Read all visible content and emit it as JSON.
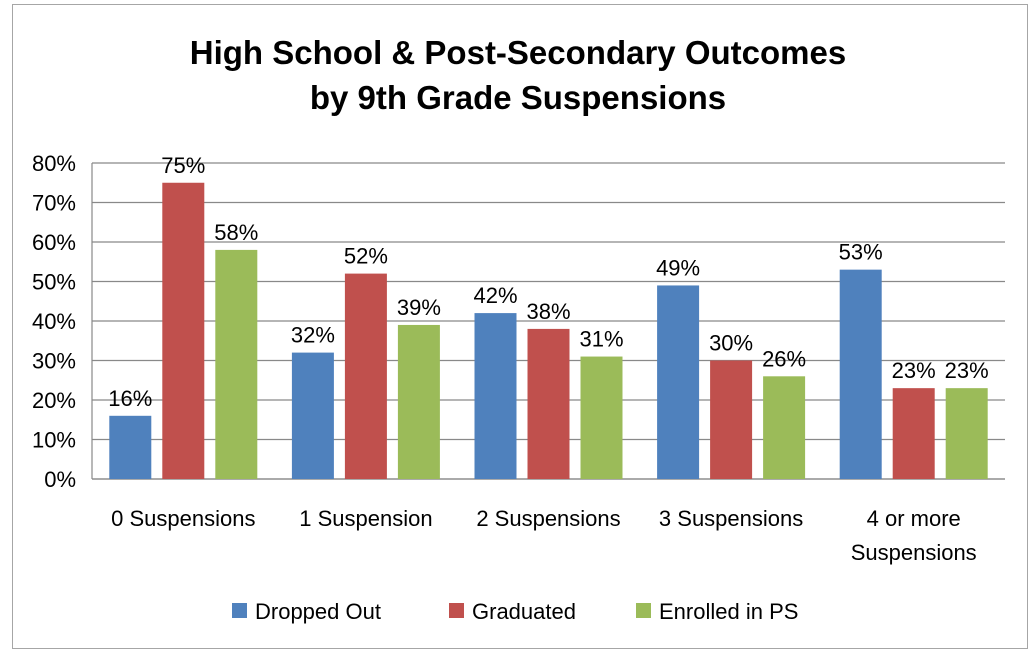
{
  "chart_data": {
    "type": "bar",
    "title": [
      "High School & Post-Secondary Outcomes",
      "by 9th Grade Suspensions"
    ],
    "categories": [
      [
        "0 Suspensions"
      ],
      [
        "1 Suspension"
      ],
      [
        "2 Suspensions"
      ],
      [
        "3 Suspensions"
      ],
      [
        "4 or more",
        "Suspensions"
      ]
    ],
    "series": [
      {
        "name": "Dropped Out",
        "color": "#4f81bd",
        "values": [
          16,
          32,
          42,
          49,
          53
        ]
      },
      {
        "name": "Graduated",
        "color": "#c0504d",
        "values": [
          75,
          52,
          38,
          30,
          23
        ]
      },
      {
        "name": "Enrolled in PS",
        "color": "#9bbb59",
        "values": [
          58,
          39,
          31,
          26,
          23
        ]
      }
    ],
    "value_suffix": "%",
    "ylim": [
      0,
      80
    ],
    "yticks": [
      0,
      10,
      20,
      30,
      40,
      50,
      60,
      70,
      80
    ],
    "ytick_labels": [
      "0%",
      "10%",
      "20%",
      "30%",
      "40%",
      "50%",
      "60%",
      "70%",
      "80%"
    ],
    "grid": true,
    "legend_position": "bottom",
    "data_labels": true,
    "colors": {
      "gridline": "#898989",
      "axis": "#898989",
      "frame": "#a6a6a6"
    }
  }
}
